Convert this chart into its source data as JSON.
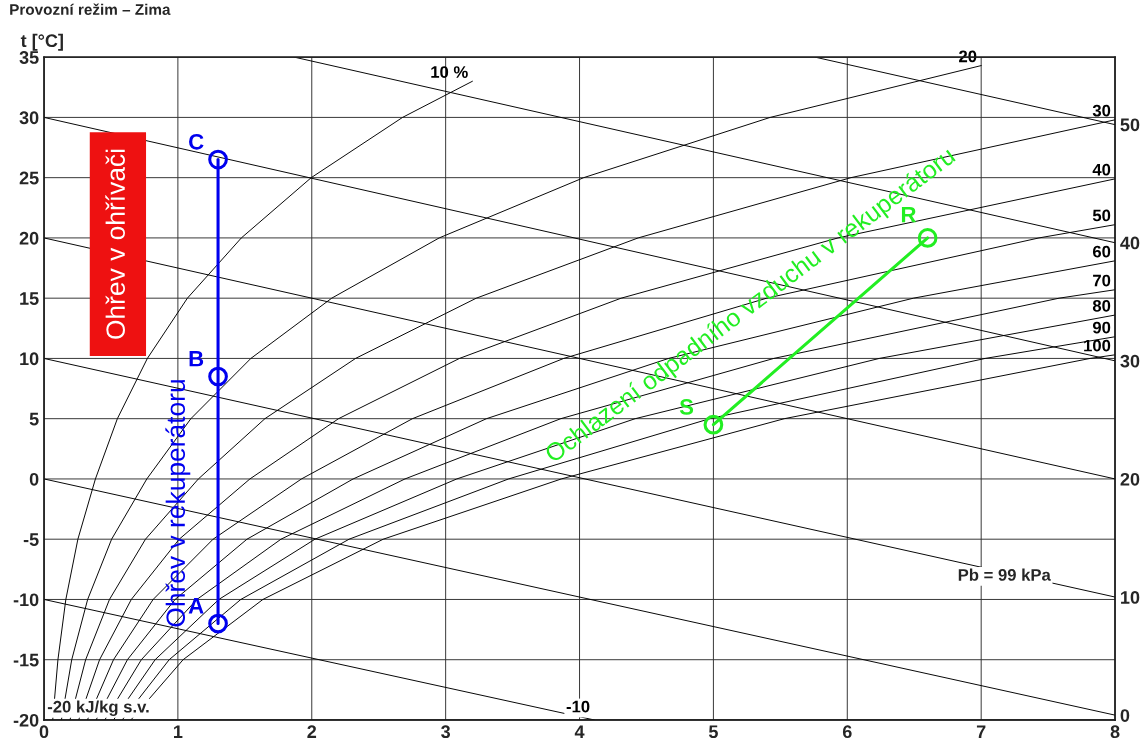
{
  "chart_data": {
    "type": "line",
    "title": "Provozní režim – Zima",
    "ylabel": "t [°C]",
    "xlim": [
      0,
      8
    ],
    "xticks": [
      0,
      1,
      2,
      3,
      4,
      5,
      6,
      7,
      8
    ],
    "ylim": [
      -20,
      35
    ],
    "yticks": [
      -20,
      -15,
      -10,
      -5,
      0,
      5,
      10,
      15,
      20,
      25,
      30,
      35
    ],
    "y2lim": [
      -0.4,
      55.7
    ],
    "y2ticks": [
      0,
      10,
      20,
      30,
      40,
      50
    ],
    "grid": true,
    "legend": false,
    "series": [
      {
        "name": "10 %",
        "color": "#000000",
        "x": [
          0.065,
          0.104,
          0.163,
          0.253,
          0.384,
          0.548,
          0.772,
          1.071,
          1.474,
          1.996,
          2.678,
          3.2
        ],
        "values": [
          -20,
          -15,
          -10,
          -5,
          0,
          5,
          10,
          15,
          20,
          25,
          30,
          33
        ]
      },
      {
        "name": "20",
        "color": "#000000",
        "x": [
          0.13,
          0.207,
          0.326,
          0.505,
          0.768,
          1.097,
          1.545,
          2.149,
          2.952,
          4.031,
          5.424,
          7.0
        ],
        "values": [
          -20,
          -15,
          -10,
          -5,
          0,
          5,
          10,
          15,
          20,
          25,
          30,
          34.3
        ]
      },
      {
        "name": "30",
        "color": "#000000",
        "x": [
          0.194,
          0.311,
          0.489,
          0.758,
          1.153,
          1.65,
          2.327,
          3.229,
          4.438,
          6.027,
          8
        ],
        "values": [
          -20,
          -15,
          -10,
          -5,
          0,
          5,
          10,
          15,
          20,
          25,
          29.8
        ]
      },
      {
        "name": "40",
        "color": "#000000",
        "x": [
          0.259,
          0.415,
          0.652,
          1.01,
          1.538,
          2.2,
          3.103,
          4.311,
          5.931,
          8
        ],
        "values": [
          -20,
          -15,
          -10,
          -5,
          0,
          5,
          10,
          15,
          20,
          24.9
        ]
      },
      {
        "name": "50",
        "color": "#000000",
        "x": [
          0.324,
          0.519,
          0.815,
          1.263,
          1.923,
          2.752,
          3.882,
          5.398,
          7.432,
          8
        ],
        "values": [
          -20,
          -15,
          -10,
          -5,
          0,
          5,
          10,
          15,
          20,
          21.1
        ]
      },
      {
        "name": "60",
        "color": "#000000",
        "x": [
          0.389,
          0.623,
          0.979,
          1.516,
          2.309,
          3.305,
          4.665,
          6.494,
          8
        ],
        "values": [
          -20,
          -15,
          -10,
          -5,
          0,
          5,
          10,
          15,
          18.1
        ]
      },
      {
        "name": "70",
        "color": "#000000",
        "x": [
          0.454,
          0.727,
          1.142,
          1.77,
          2.696,
          3.86,
          5.451,
          7.582,
          8
        ],
        "values": [
          -20,
          -15,
          -10,
          -5,
          0,
          5,
          10,
          15,
          15.7
        ]
      },
      {
        "name": "80",
        "color": "#000000",
        "x": [
          0.519,
          0.83,
          1.306,
          2.024,
          3.083,
          4.416,
          6.239,
          8
        ],
        "values": [
          -20,
          -15,
          -10,
          -5,
          0,
          5,
          10,
          13.6
        ]
      },
      {
        "name": "90",
        "color": "#000000",
        "x": [
          0.584,
          0.935,
          1.47,
          2.279,
          3.47,
          4.973,
          7.03,
          8
        ],
        "values": [
          -20,
          -15,
          -10,
          -5,
          0,
          5,
          10,
          11.8
        ]
      },
      {
        "name": "100",
        "color": "#000000",
        "x": [
          0.649,
          1.039,
          1.635,
          2.534,
          3.864,
          5.53,
          7.814,
          8
        ],
        "values": [
          -20,
          -15,
          -10,
          -5,
          0,
          5,
          10,
          10.3
        ]
      },
      {
        "color": "#000000",
        "x": [
          0,
          4.11
        ],
        "values": [
          -10,
          -20
        ]
      },
      {
        "color": "#000000",
        "x": [
          0,
          8
        ],
        "values": [
          0,
          -19.6
        ]
      },
      {
        "color": "#000000",
        "x": [
          0,
          8
        ],
        "values": [
          10,
          -9.8
        ]
      },
      {
        "color": "#000000",
        "x": [
          0,
          8
        ],
        "values": [
          20,
          0
        ]
      },
      {
        "color": "#000000",
        "x": [
          0,
          8
        ],
        "values": [
          30,
          9.8
        ]
      },
      {
        "color": "#000000",
        "x": [
          1.87,
          8
        ],
        "values": [
          35,
          19.6
        ]
      },
      {
        "color": "#000000",
        "x": [
          5.76,
          8
        ],
        "values": [
          35,
          29.4
        ]
      },
      {
        "color": "#0000ee",
        "marker": "circle",
        "x": [
          1.3,
          1.3,
          1.3
        ],
        "values": [
          -12,
          8.5,
          26.5
        ]
      },
      {
        "color": "#22ee22",
        "marker": "circle",
        "x": [
          6.6,
          5.0
        ],
        "values": [
          20,
          4.5
        ]
      }
    ],
    "annotations": [
      {
        "text": "A",
        "x": 1.3,
        "y": -12
      },
      {
        "text": "B",
        "x": 1.3,
        "y": 8.5
      },
      {
        "text": "C",
        "x": 1.3,
        "y": 26.5
      },
      {
        "text": "R",
        "x": 6.6,
        "y": 20
      },
      {
        "text": "S",
        "x": 5.0,
        "y": 4.5
      },
      {
        "text": "Ohřev v rekuperátoru",
        "x": 1.3,
        "y": -2
      },
      "Ohřev v ohřívači",
      {
        "text": "Ochlazení odpadního vzduchu v rekuperátoru",
        "x": 5.8,
        "y": 12.25
      },
      "-20 kJ/kg s.v.",
      {
        "text": "-10",
        "x": 4.11,
        "y": -20
      },
      "Pb = 99 kPa"
    ]
  }
}
